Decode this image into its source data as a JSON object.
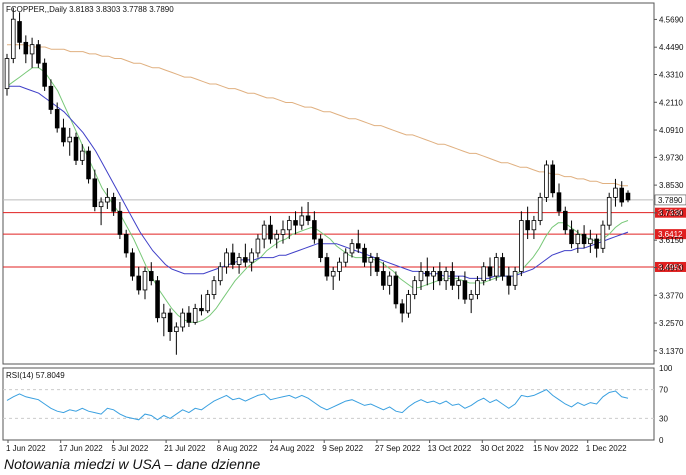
{
  "header": {
    "symbol_line": "FCOPPER,,Daily  3.8183 3.8303 3.7788 3.7890"
  },
  "caption": "Notowania miedzi w USA – dane dzienne",
  "chart_data": {
    "type": "candlestick",
    "symbol": "FCOPPER",
    "timeframe": "Daily",
    "ohlc_last": {
      "open": 3.8183,
      "high": 3.8303,
      "low": 3.7788,
      "close": 3.789
    },
    "price_axis": {
      "ylim": [
        3.08,
        4.64
      ],
      "ticks": [
        "4.5690",
        "4.4490",
        "4.3310",
        "4.2110",
        "4.0910",
        "3.9730",
        "3.8530",
        "3.7330",
        "3.6150",
        "3.4970",
        "3.3770",
        "3.2570",
        "3.1370"
      ]
    },
    "x_tick_labels": [
      "1 Jun 2022",
      "17 Jun 2022",
      "5 Jul 2022",
      "21 Jul 2022",
      "8 Aug 2022",
      "24 Aug 2022",
      "9 Sep 2022",
      "27 Sep 2022",
      "13 Oct 2022",
      "30 Oct 2022",
      "15 Nov 2022",
      "1 Dec 2022"
    ],
    "horizontal_levels": [
      {
        "label": "3.7890",
        "value": 3.789,
        "color": "#444444",
        "style": "solid-dark"
      },
      {
        "label": "3.7339",
        "value": 3.7339,
        "color": "#e02020",
        "style": "red"
      },
      {
        "label": "3.6412",
        "value": 3.6412,
        "color": "#e02020",
        "style": "red"
      },
      {
        "label": "3.4993",
        "value": 3.4993,
        "color": "#e02020",
        "style": "red"
      }
    ],
    "candles": [
      {
        "o": 4.27,
        "h": 4.42,
        "l": 4.24,
        "c": 4.4
      },
      {
        "o": 4.4,
        "h": 4.62,
        "l": 4.38,
        "c": 4.57
      },
      {
        "o": 4.56,
        "h": 4.6,
        "l": 4.44,
        "c": 4.47
      },
      {
        "o": 4.47,
        "h": 4.5,
        "l": 4.38,
        "c": 4.42
      },
      {
        "o": 4.42,
        "h": 4.49,
        "l": 4.36,
        "c": 4.46
      },
      {
        "o": 4.46,
        "h": 4.48,
        "l": 4.36,
        "c": 4.38
      },
      {
        "o": 4.38,
        "h": 4.4,
        "l": 4.26,
        "c": 4.28
      },
      {
        "o": 4.28,
        "h": 4.31,
        "l": 4.16,
        "c": 4.18
      },
      {
        "o": 4.18,
        "h": 4.21,
        "l": 4.08,
        "c": 4.1
      },
      {
        "o": 4.1,
        "h": 4.14,
        "l": 4.02,
        "c": 4.04
      },
      {
        "o": 4.04,
        "h": 4.1,
        "l": 3.98,
        "c": 4.06
      },
      {
        "o": 4.06,
        "h": 4.08,
        "l": 3.94,
        "c": 3.96
      },
      {
        "o": 3.96,
        "h": 4.03,
        "l": 3.94,
        "c": 4.0
      },
      {
        "o": 4.0,
        "h": 4.02,
        "l": 3.86,
        "c": 3.88
      },
      {
        "o": 3.88,
        "h": 3.92,
        "l": 3.74,
        "c": 3.76
      },
      {
        "o": 3.76,
        "h": 3.8,
        "l": 3.68,
        "c": 3.78
      },
      {
        "o": 3.78,
        "h": 3.84,
        "l": 3.75,
        "c": 3.8
      },
      {
        "o": 3.8,
        "h": 3.82,
        "l": 3.72,
        "c": 3.74
      },
      {
        "o": 3.74,
        "h": 3.78,
        "l": 3.62,
        "c": 3.64
      },
      {
        "o": 3.64,
        "h": 3.66,
        "l": 3.54,
        "c": 3.56
      },
      {
        "o": 3.56,
        "h": 3.58,
        "l": 3.44,
        "c": 3.46
      },
      {
        "o": 3.46,
        "h": 3.5,
        "l": 3.38,
        "c": 3.4
      },
      {
        "o": 3.4,
        "h": 3.5,
        "l": 3.36,
        "c": 3.48
      },
      {
        "o": 3.48,
        "h": 3.52,
        "l": 3.42,
        "c": 3.44
      },
      {
        "o": 3.44,
        "h": 3.46,
        "l": 3.26,
        "c": 3.28
      },
      {
        "o": 3.28,
        "h": 3.34,
        "l": 3.2,
        "c": 3.3
      },
      {
        "o": 3.3,
        "h": 3.32,
        "l": 3.18,
        "c": 3.22
      },
      {
        "o": 3.22,
        "h": 3.26,
        "l": 3.12,
        "c": 3.24
      },
      {
        "o": 3.24,
        "h": 3.32,
        "l": 3.22,
        "c": 3.3
      },
      {
        "o": 3.3,
        "h": 3.33,
        "l": 3.24,
        "c": 3.26
      },
      {
        "o": 3.26,
        "h": 3.34,
        "l": 3.25,
        "c": 3.32
      },
      {
        "o": 3.32,
        "h": 3.38,
        "l": 3.29,
        "c": 3.31
      },
      {
        "o": 3.31,
        "h": 3.4,
        "l": 3.3,
        "c": 3.38
      },
      {
        "o": 3.38,
        "h": 3.46,
        "l": 3.36,
        "c": 3.44
      },
      {
        "o": 3.44,
        "h": 3.52,
        "l": 3.42,
        "c": 3.5
      },
      {
        "o": 3.5,
        "h": 3.58,
        "l": 3.47,
        "c": 3.56
      },
      {
        "o": 3.56,
        "h": 3.6,
        "l": 3.49,
        "c": 3.51
      },
      {
        "o": 3.51,
        "h": 3.56,
        "l": 3.47,
        "c": 3.54
      },
      {
        "o": 3.54,
        "h": 3.6,
        "l": 3.5,
        "c": 3.52
      },
      {
        "o": 3.52,
        "h": 3.58,
        "l": 3.48,
        "c": 3.56
      },
      {
        "o": 3.56,
        "h": 3.64,
        "l": 3.54,
        "c": 3.62
      },
      {
        "o": 3.62,
        "h": 3.7,
        "l": 3.58,
        "c": 3.68
      },
      {
        "o": 3.68,
        "h": 3.72,
        "l": 3.6,
        "c": 3.62
      },
      {
        "o": 3.62,
        "h": 3.66,
        "l": 3.58,
        "c": 3.64
      },
      {
        "o": 3.64,
        "h": 3.7,
        "l": 3.6,
        "c": 3.66
      },
      {
        "o": 3.66,
        "h": 3.72,
        "l": 3.62,
        "c": 3.7
      },
      {
        "o": 3.7,
        "h": 3.74,
        "l": 3.64,
        "c": 3.68
      },
      {
        "o": 3.68,
        "h": 3.76,
        "l": 3.66,
        "c": 3.72
      },
      {
        "o": 3.72,
        "h": 3.78,
        "l": 3.68,
        "c": 3.7
      },
      {
        "o": 3.7,
        "h": 3.74,
        "l": 3.6,
        "c": 3.62
      },
      {
        "o": 3.62,
        "h": 3.64,
        "l": 3.52,
        "c": 3.54
      },
      {
        "o": 3.54,
        "h": 3.56,
        "l": 3.44,
        "c": 3.46
      },
      {
        "o": 3.46,
        "h": 3.5,
        "l": 3.4,
        "c": 3.48
      },
      {
        "o": 3.48,
        "h": 3.54,
        "l": 3.44,
        "c": 3.52
      },
      {
        "o": 3.52,
        "h": 3.58,
        "l": 3.5,
        "c": 3.56
      },
      {
        "o": 3.56,
        "h": 3.62,
        "l": 3.54,
        "c": 3.6
      },
      {
        "o": 3.6,
        "h": 3.66,
        "l": 3.56,
        "c": 3.58
      },
      {
        "o": 3.58,
        "h": 3.6,
        "l": 3.5,
        "c": 3.52
      },
      {
        "o": 3.52,
        "h": 3.56,
        "l": 3.46,
        "c": 3.54
      },
      {
        "o": 3.54,
        "h": 3.56,
        "l": 3.46,
        "c": 3.48
      },
      {
        "o": 3.48,
        "h": 3.52,
        "l": 3.4,
        "c": 3.42
      },
      {
        "o": 3.42,
        "h": 3.48,
        "l": 3.38,
        "c": 3.46
      },
      {
        "o": 3.46,
        "h": 3.48,
        "l": 3.32,
        "c": 3.34
      },
      {
        "o": 3.34,
        "h": 3.36,
        "l": 3.26,
        "c": 3.3
      },
      {
        "o": 3.3,
        "h": 3.4,
        "l": 3.28,
        "c": 3.38
      },
      {
        "o": 3.38,
        "h": 3.46,
        "l": 3.36,
        "c": 3.44
      },
      {
        "o": 3.44,
        "h": 3.52,
        "l": 3.4,
        "c": 3.48
      },
      {
        "o": 3.48,
        "h": 3.54,
        "l": 3.42,
        "c": 3.46
      },
      {
        "o": 3.46,
        "h": 3.5,
        "l": 3.4,
        "c": 3.48
      },
      {
        "o": 3.48,
        "h": 3.52,
        "l": 3.42,
        "c": 3.44
      },
      {
        "o": 3.44,
        "h": 3.5,
        "l": 3.4,
        "c": 3.48
      },
      {
        "o": 3.48,
        "h": 3.52,
        "l": 3.4,
        "c": 3.42
      },
      {
        "o": 3.42,
        "h": 3.46,
        "l": 3.36,
        "c": 3.44
      },
      {
        "o": 3.44,
        "h": 3.48,
        "l": 3.34,
        "c": 3.36
      },
      {
        "o": 3.36,
        "h": 3.4,
        "l": 3.3,
        "c": 3.38
      },
      {
        "o": 3.38,
        "h": 3.46,
        "l": 3.36,
        "c": 3.44
      },
      {
        "o": 3.44,
        "h": 3.52,
        "l": 3.42,
        "c": 3.5
      },
      {
        "o": 3.5,
        "h": 3.54,
        "l": 3.44,
        "c": 3.46
      },
      {
        "o": 3.46,
        "h": 3.56,
        "l": 3.44,
        "c": 3.54
      },
      {
        "o": 3.54,
        "h": 3.56,
        "l": 3.44,
        "c": 3.46
      },
      {
        "o": 3.46,
        "h": 3.5,
        "l": 3.38,
        "c": 3.42
      },
      {
        "o": 3.42,
        "h": 3.5,
        "l": 3.4,
        "c": 3.48
      },
      {
        "o": 3.48,
        "h": 3.74,
        "l": 3.46,
        "c": 3.7
      },
      {
        "o": 3.7,
        "h": 3.76,
        "l": 3.62,
        "c": 3.66
      },
      {
        "o": 3.66,
        "h": 3.72,
        "l": 3.62,
        "c": 3.7
      },
      {
        "o": 3.7,
        "h": 3.82,
        "l": 3.68,
        "c": 3.8
      },
      {
        "o": 3.8,
        "h": 3.96,
        "l": 3.78,
        "c": 3.94
      },
      {
        "o": 3.94,
        "h": 3.96,
        "l": 3.8,
        "c": 3.82
      },
      {
        "o": 3.82,
        "h": 3.86,
        "l": 3.72,
        "c": 3.74
      },
      {
        "o": 3.74,
        "h": 3.76,
        "l": 3.64,
        "c": 3.66
      },
      {
        "o": 3.66,
        "h": 3.7,
        "l": 3.58,
        "c": 3.6
      },
      {
        "o": 3.6,
        "h": 3.66,
        "l": 3.56,
        "c": 3.64
      },
      {
        "o": 3.64,
        "h": 3.68,
        "l": 3.58,
        "c": 3.6
      },
      {
        "o": 3.6,
        "h": 3.66,
        "l": 3.56,
        "c": 3.62
      },
      {
        "o": 3.62,
        "h": 3.64,
        "l": 3.54,
        "c": 3.58
      },
      {
        "o": 3.58,
        "h": 3.7,
        "l": 3.56,
        "c": 3.68
      },
      {
        "o": 3.68,
        "h": 3.82,
        "l": 3.66,
        "c": 3.8
      },
      {
        "o": 3.8,
        "h": 3.88,
        "l": 3.76,
        "c": 3.84
      },
      {
        "o": 3.84,
        "h": 3.87,
        "l": 3.76,
        "c": 3.78
      },
      {
        "o": 3.8183,
        "h": 3.8303,
        "l": 3.7788,
        "c": 3.789
      }
    ],
    "moving_averages": [
      {
        "color": "#78c878",
        "period_hint": "short",
        "values": [
          4.28,
          4.3,
          4.32,
          4.34,
          4.36,
          4.36,
          4.34,
          4.3,
          4.26,
          4.2,
          4.14,
          4.08,
          4.02,
          3.96,
          3.9,
          3.84,
          3.8,
          3.76,
          3.72,
          3.67,
          3.62,
          3.56,
          3.5,
          3.45,
          3.4,
          3.36,
          3.32,
          3.29,
          3.27,
          3.26,
          3.26,
          3.27,
          3.29,
          3.32,
          3.36,
          3.4,
          3.44,
          3.47,
          3.5,
          3.52,
          3.54,
          3.57,
          3.59,
          3.61,
          3.62,
          3.64,
          3.65,
          3.66,
          3.67,
          3.66,
          3.64,
          3.62,
          3.59,
          3.57,
          3.55,
          3.54,
          3.54,
          3.54,
          3.53,
          3.52,
          3.5,
          3.48,
          3.45,
          3.43,
          3.41,
          3.41,
          3.42,
          3.43,
          3.44,
          3.45,
          3.45,
          3.45,
          3.44,
          3.43,
          3.43,
          3.43,
          3.44,
          3.45,
          3.46,
          3.46,
          3.46,
          3.48,
          3.51,
          3.54,
          3.58,
          3.63,
          3.67,
          3.69,
          3.69,
          3.67,
          3.65,
          3.63,
          3.62,
          3.61,
          3.62,
          3.64,
          3.67,
          3.69,
          3.7
        ]
      },
      {
        "color": "#4040c8",
        "period_hint": "medium",
        "values": [
          4.28,
          4.28,
          4.28,
          4.27,
          4.26,
          4.25,
          4.23,
          4.21,
          4.19,
          4.17,
          4.14,
          4.11,
          4.08,
          4.04,
          4.0,
          3.95,
          3.9,
          3.85,
          3.8,
          3.75,
          3.7,
          3.65,
          3.61,
          3.57,
          3.54,
          3.51,
          3.49,
          3.48,
          3.47,
          3.47,
          3.47,
          3.47,
          3.48,
          3.49,
          3.5,
          3.51,
          3.52,
          3.53,
          3.53,
          3.53,
          3.54,
          3.54,
          3.54,
          3.55,
          3.55,
          3.56,
          3.57,
          3.58,
          3.59,
          3.6,
          3.6,
          3.6,
          3.6,
          3.59,
          3.58,
          3.57,
          3.56,
          3.55,
          3.54,
          3.53,
          3.52,
          3.51,
          3.5,
          3.49,
          3.48,
          3.48,
          3.47,
          3.47,
          3.47,
          3.46,
          3.46,
          3.46,
          3.46,
          3.45,
          3.45,
          3.45,
          3.45,
          3.46,
          3.46,
          3.46,
          3.46,
          3.47,
          3.48,
          3.49,
          3.51,
          3.53,
          3.55,
          3.56,
          3.57,
          3.57,
          3.58,
          3.58,
          3.59,
          3.6,
          3.61,
          3.62,
          3.63,
          3.64,
          3.65
        ]
      },
      {
        "color": "#e0b080",
        "period_hint": "long",
        "values": [
          4.46,
          4.46,
          4.46,
          4.46,
          4.45,
          4.45,
          4.45,
          4.44,
          4.44,
          4.44,
          4.43,
          4.43,
          4.43,
          4.42,
          4.42,
          4.41,
          4.41,
          4.4,
          4.4,
          4.39,
          4.38,
          4.38,
          4.37,
          4.36,
          4.36,
          4.35,
          4.34,
          4.33,
          4.32,
          4.32,
          4.31,
          4.3,
          4.29,
          4.29,
          4.28,
          4.27,
          4.27,
          4.26,
          4.25,
          4.25,
          4.24,
          4.23,
          4.23,
          4.22,
          4.21,
          4.21,
          4.2,
          4.19,
          4.19,
          4.18,
          4.17,
          4.17,
          4.16,
          4.15,
          4.14,
          4.14,
          4.13,
          4.12,
          4.11,
          4.11,
          4.1,
          4.09,
          4.08,
          4.07,
          4.07,
          4.06,
          4.05,
          4.04,
          4.03,
          4.03,
          4.02,
          4.01,
          4.0,
          3.99,
          3.99,
          3.98,
          3.97,
          3.96,
          3.95,
          3.95,
          3.94,
          3.93,
          3.93,
          3.92,
          3.91,
          3.91,
          3.9,
          3.9,
          3.89,
          3.89,
          3.88,
          3.88,
          3.87,
          3.87,
          3.86,
          3.86,
          3.86,
          3.85,
          3.85
        ]
      }
    ],
    "rsi": {
      "label": "RSI(14) 57.8049",
      "period": 14,
      "last": 57.8049,
      "ylim": [
        0,
        100
      ],
      "ticks": [
        "100",
        "70",
        "30",
        "0"
      ],
      "color": "#3aa0e0",
      "values": [
        55,
        60,
        64,
        60,
        58,
        56,
        50,
        44,
        40,
        38,
        42,
        40,
        44,
        40,
        38,
        36,
        44,
        42,
        36,
        32,
        30,
        28,
        36,
        34,
        28,
        34,
        30,
        36,
        42,
        38,
        44,
        42,
        48,
        54,
        58,
        62,
        56,
        58,
        54,
        58,
        62,
        64,
        56,
        58,
        60,
        62,
        58,
        62,
        58,
        52,
        46,
        42,
        46,
        50,
        54,
        56,
        52,
        48,
        50,
        46,
        42,
        46,
        40,
        38,
        46,
        52,
        56,
        52,
        54,
        50,
        54,
        48,
        50,
        44,
        48,
        54,
        58,
        52,
        56,
        50,
        44,
        50,
        62,
        60,
        62,
        66,
        70,
        62,
        56,
        50,
        46,
        52,
        48,
        52,
        50,
        60,
        66,
        68,
        60,
        58
      ]
    }
  }
}
